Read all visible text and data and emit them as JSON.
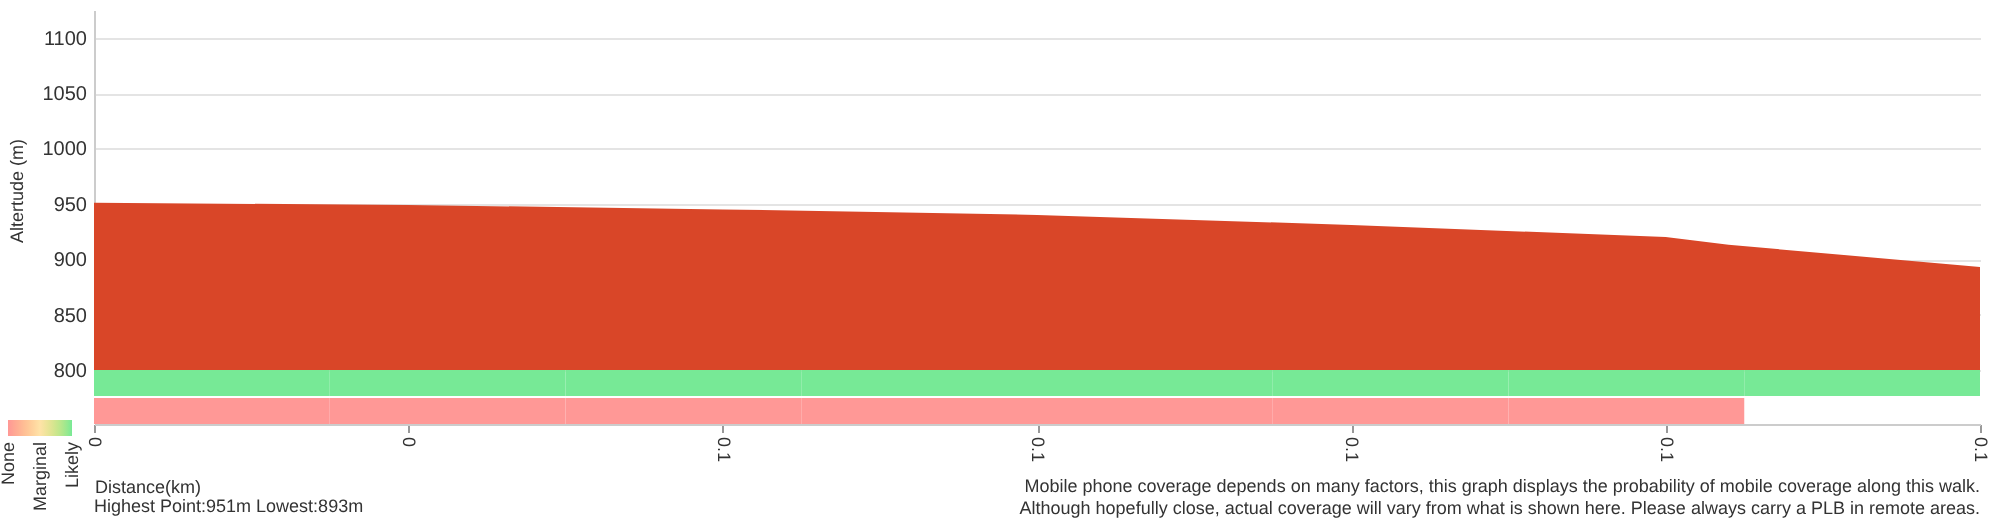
{
  "chart_data": [
    {
      "type": "area",
      "xlabel": "Distance(km)",
      "ylabel": "Altertude (m)",
      "x": [
        0,
        0.025,
        0.05,
        0.075,
        0.1,
        0.125,
        0.13,
        0.15
      ],
      "series": [
        {
          "color": "#d94628",
          "values": [
            951,
            949,
            945,
            940,
            931,
            920,
            913,
            893
          ]
        }
      ],
      "xlim": [
        0,
        0.15
      ],
      "xticks": [
        0,
        {
          "value": 0.025,
          "label": "0"
        },
        {
          "value": 0.05,
          "label": "0.1"
        },
        {
          "value": 0.075,
          "label": "0.1"
        },
        0.1,
        {
          "value": 0.125,
          "label": "0.1"
        },
        {
          "value": 0.15,
          "label": "0.1"
        }
      ],
      "ylim": [
        800,
        1125
      ],
      "yticks": [
        800,
        850,
        900,
        950,
        1000,
        1050,
        1100
      ],
      "grid": "y",
      "annotations": [
        "Highest Point:951m Lowest:893m",
        "Mobile phone coverage depends on many factors, this graph displays the probability of mobile coverage along this walk.",
        "Although hopefully close, actual coverage will vary from what is shown here. Please always carry a PLB in remote areas."
      ]
    },
    {
      "type": "heatmap",
      "categories": [
        null,
        null,
        null,
        null,
        null,
        null,
        null,
        null
      ],
      "y_categories": [
        null,
        null
      ],
      "cells": [
        [
          2,
          2,
          2,
          2,
          2,
          2,
          2,
          2
        ],
        [
          0,
          0,
          0,
          0,
          0,
          0,
          0,
          null
        ]
      ],
      "colors": [
        "#ff9896",
        "#ffe3a8",
        "#77e996"
      ],
      "clim": [
        0,
        2
      ],
      "cticks": [
        {
          "value": 0,
          "label": "None"
        },
        {
          "value": 1,
          "label": "Marginal"
        },
        {
          "value": 2,
          "label": "Likely"
        }
      ]
    }
  ]
}
